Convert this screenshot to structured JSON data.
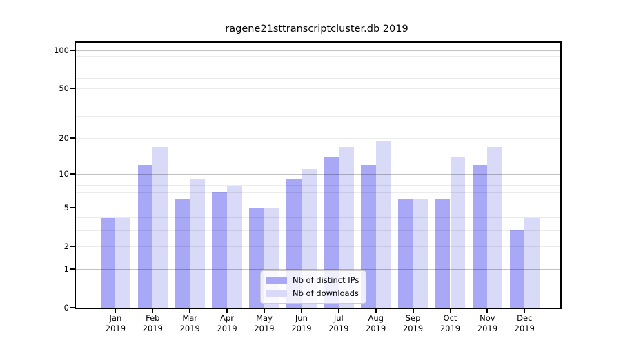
{
  "title": "ragene21sttranscriptcluster.db 2019",
  "chart_data": {
    "type": "bar",
    "title": "ragene21sttranscriptcluster.db 2019",
    "xlabel": "",
    "ylabel": "",
    "scale": "log1p",
    "categories": [
      "Jan",
      "Feb",
      "Mar",
      "Apr",
      "May",
      "Jun",
      "Jul",
      "Aug",
      "Sep",
      "Oct",
      "Nov",
      "Dec"
    ],
    "year": "2019",
    "series": [
      {
        "name": "Nb of distinct IPs",
        "color": "#a8a8f6",
        "values": [
          4,
          12,
          6,
          7,
          5,
          9,
          14,
          12,
          6,
          6,
          12,
          3
        ]
      },
      {
        "name": "Nb of downloads",
        "color": "#d9d9f8",
        "values": [
          4,
          17,
          9,
          8,
          5,
          11,
          17,
          19,
          6,
          14,
          17,
          4
        ]
      }
    ],
    "yticks": [
      0,
      1,
      2,
      5,
      10,
      20,
      50,
      100
    ],
    "ylim": [
      0,
      115
    ],
    "grid": true,
    "grid_major_values": [
      1,
      10,
      100
    ],
    "grid_minor_values": [
      2,
      3,
      4,
      5,
      6,
      7,
      8,
      9,
      20,
      30,
      40,
      50,
      60,
      70,
      80,
      90
    ],
    "legend_position": "lower center"
  },
  "colors": {
    "bar_distinct_ips": "#a8a8f6",
    "bar_downloads": "#d9d9f8",
    "grid_major": "rgba(0,0,0,0.24)",
    "grid_minor": "rgba(0,0,0,0.08)",
    "spine": "#000000",
    "background": "#ffffff"
  }
}
